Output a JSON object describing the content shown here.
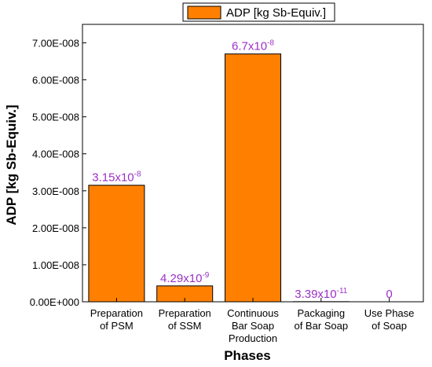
{
  "chart_data": {
    "type": "bar",
    "legend": {
      "label": "ADP [kg Sb-Equiv.]",
      "placement": "top",
      "color": "#ff8000"
    },
    "ylabel": "ADP [kg Sb-Equiv.]",
    "xlabel": "Phases",
    "ylim": [
      0,
      7.5e-08
    ],
    "yticks": [
      0,
      1e-08,
      2e-08,
      3e-08,
      4e-08,
      5e-08,
      6e-08,
      7e-08
    ],
    "ytick_labels": [
      "0.00E+000",
      "1.00E-008",
      "2.00E-008",
      "3.00E-008",
      "4.00E-008",
      "5.00E-008",
      "6.00E-008",
      "7.00E-008"
    ],
    "grid": false,
    "categories": [
      [
        "Preparation",
        "of PSM"
      ],
      [
        "Preparation",
        "of SSM"
      ],
      [
        "Continuous",
        "Bar Soap",
        "Production"
      ],
      [
        "Packaging",
        "of Bar Soap"
      ],
      [
        "Use Phase",
        "of Soap"
      ]
    ],
    "series": [
      {
        "name": "ADP [kg Sb-Equiv.]",
        "color": "#ff8000",
        "values": [
          3.15e-08,
          4.29e-09,
          6.7e-08,
          3.39e-11,
          0
        ]
      }
    ],
    "data_labels": [
      {
        "base": "3.15x10",
        "exp": "-8"
      },
      {
        "base": "4.29x10",
        "exp": "-9"
      },
      {
        "base": "6.7x10",
        "exp": "-8"
      },
      {
        "base": "3.39x10",
        "exp": "-11"
      },
      {
        "base": "0",
        "exp": ""
      }
    ],
    "label_color": "#9b30c8"
  }
}
